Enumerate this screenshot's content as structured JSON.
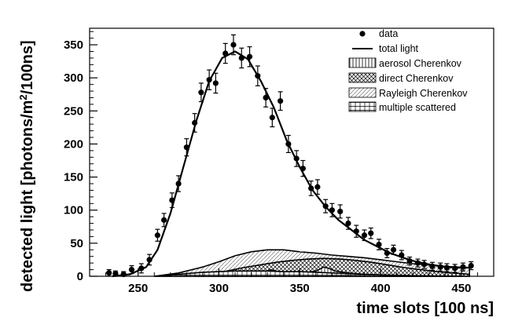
{
  "chart_data": {
    "type": "scatter",
    "xlabel": "time slots [100 ns]",
    "ylabel_main": "detected light [photons/m",
    "ylabel_sup": "2",
    "ylabel_tail": "/100ns]",
    "xlim": [
      220,
      470
    ],
    "ylim": [
      0,
      375
    ],
    "xticks": [
      250,
      300,
      350,
      400,
      450
    ],
    "yticks": [
      0,
      50,
      100,
      150,
      200,
      250,
      300,
      350
    ],
    "legend": {
      "data": "data",
      "total": "total light",
      "aerosol": "aerosol Cherenkov",
      "direct": "direct Cherenkov",
      "rayleigh": "Rayleigh Cherenkov",
      "multiple": "multiple scattered"
    },
    "points": [
      {
        "x": 232,
        "y": 5,
        "e": 5
      },
      {
        "x": 236,
        "y": 4,
        "e": 4
      },
      {
        "x": 241,
        "y": 3,
        "e": 4
      },
      {
        "x": 246,
        "y": 10,
        "e": 6
      },
      {
        "x": 252,
        "y": 12,
        "e": 7
      },
      {
        "x": 257,
        "y": 25,
        "e": 8
      },
      {
        "x": 262,
        "y": 62,
        "e": 9
      },
      {
        "x": 266,
        "y": 85,
        "e": 10
      },
      {
        "x": 271,
        "y": 115,
        "e": 11
      },
      {
        "x": 275,
        "y": 140,
        "e": 12
      },
      {
        "x": 280,
        "y": 195,
        "e": 13
      },
      {
        "x": 285,
        "y": 232,
        "e": 14
      },
      {
        "x": 289,
        "y": 278,
        "e": 14
      },
      {
        "x": 294,
        "y": 297,
        "e": 15
      },
      {
        "x": 298,
        "y": 292,
        "e": 15
      },
      {
        "x": 304,
        "y": 337,
        "e": 15
      },
      {
        "x": 309,
        "y": 350,
        "e": 15
      },
      {
        "x": 314,
        "y": 330,
        "e": 15
      },
      {
        "x": 319,
        "y": 332,
        "e": 15
      },
      {
        "x": 324,
        "y": 303,
        "e": 15
      },
      {
        "x": 329,
        "y": 270,
        "e": 14
      },
      {
        "x": 333,
        "y": 240,
        "e": 14
      },
      {
        "x": 338,
        "y": 265,
        "e": 14
      },
      {
        "x": 343,
        "y": 200,
        "e": 13
      },
      {
        "x": 348,
        "y": 178,
        "e": 12
      },
      {
        "x": 352,
        "y": 163,
        "e": 12
      },
      {
        "x": 357,
        "y": 133,
        "e": 11
      },
      {
        "x": 361,
        "y": 135,
        "e": 11
      },
      {
        "x": 366,
        "y": 106,
        "e": 10
      },
      {
        "x": 370,
        "y": 100,
        "e": 10
      },
      {
        "x": 375,
        "y": 98,
        "e": 10
      },
      {
        "x": 380,
        "y": 80,
        "e": 9
      },
      {
        "x": 385,
        "y": 68,
        "e": 9
      },
      {
        "x": 390,
        "y": 62,
        "e": 8
      },
      {
        "x": 394,
        "y": 65,
        "e": 8
      },
      {
        "x": 399,
        "y": 48,
        "e": 8
      },
      {
        "x": 404,
        "y": 35,
        "e": 7
      },
      {
        "x": 408,
        "y": 40,
        "e": 7
      },
      {
        "x": 413,
        "y": 32,
        "e": 7
      },
      {
        "x": 418,
        "y": 23,
        "e": 6
      },
      {
        "x": 423,
        "y": 20,
        "e": 6
      },
      {
        "x": 427,
        "y": 18,
        "e": 6
      },
      {
        "x": 432,
        "y": 15,
        "e": 6
      },
      {
        "x": 437,
        "y": 14,
        "e": 6
      },
      {
        "x": 441,
        "y": 13,
        "e": 6
      },
      {
        "x": 446,
        "y": 12,
        "e": 6
      },
      {
        "x": 451,
        "y": 14,
        "e": 6
      },
      {
        "x": 456,
        "y": 16,
        "e": 6
      }
    ],
    "total_light": [
      [
        234,
        0
      ],
      [
        245,
        3
      ],
      [
        255,
        14
      ],
      [
        262,
        40
      ],
      [
        270,
        95
      ],
      [
        278,
        165
      ],
      [
        286,
        235
      ],
      [
        294,
        295
      ],
      [
        302,
        330
      ],
      [
        310,
        340
      ],
      [
        318,
        328
      ],
      [
        326,
        295
      ],
      [
        334,
        255
      ],
      [
        342,
        205
      ],
      [
        350,
        165
      ],
      [
        358,
        130
      ],
      [
        366,
        105
      ],
      [
        374,
        85
      ],
      [
        382,
        70
      ],
      [
        390,
        55
      ],
      [
        398,
        45
      ],
      [
        406,
        35
      ],
      [
        414,
        28
      ],
      [
        422,
        22
      ],
      [
        430,
        18
      ],
      [
        438,
        15
      ],
      [
        446,
        13
      ],
      [
        455,
        13
      ]
    ],
    "direct_cherenkov": [
      [
        285,
        0
      ],
      [
        295,
        3
      ],
      [
        305,
        8
      ],
      [
        315,
        13
      ],
      [
        325,
        17
      ],
      [
        335,
        21
      ],
      [
        345,
        24
      ],
      [
        355,
        26
      ],
      [
        365,
        27
      ],
      [
        375,
        26
      ],
      [
        385,
        24
      ],
      [
        395,
        21
      ],
      [
        405,
        17
      ],
      [
        415,
        13
      ],
      [
        425,
        10
      ],
      [
        435,
        7
      ],
      [
        445,
        5
      ],
      [
        455,
        3
      ]
    ],
    "rayleigh_cherenkov": [
      [
        260,
        0
      ],
      [
        275,
        5
      ],
      [
        290,
        14
      ],
      [
        300,
        22
      ],
      [
        310,
        31
      ],
      [
        320,
        37
      ],
      [
        330,
        40
      ],
      [
        340,
        40
      ],
      [
        350,
        37
      ],
      [
        360,
        35
      ],
      [
        370,
        32
      ],
      [
        380,
        30
      ],
      [
        390,
        28
      ],
      [
        400,
        25
      ],
      [
        410,
        22
      ],
      [
        420,
        19
      ],
      [
        430,
        17
      ],
      [
        440,
        15
      ],
      [
        455,
        13
      ]
    ],
    "aerosol_cherenkov": [
      [
        285,
        0
      ],
      [
        295,
        2
      ],
      [
        305,
        4
      ],
      [
        315,
        5
      ],
      [
        320,
        4
      ],
      [
        325,
        3
      ],
      [
        330,
        8
      ],
      [
        332,
        10
      ],
      [
        335,
        8
      ],
      [
        340,
        5
      ],
      [
        350,
        4
      ],
      [
        360,
        8
      ],
      [
        365,
        14
      ],
      [
        368,
        12
      ],
      [
        372,
        8
      ],
      [
        380,
        5
      ],
      [
        390,
        3
      ],
      [
        400,
        2
      ],
      [
        410,
        1
      ],
      [
        425,
        0
      ]
    ],
    "multiple_scattered": [
      [
        260,
        0
      ],
      [
        270,
        2
      ],
      [
        280,
        4
      ],
      [
        290,
        6
      ],
      [
        300,
        7
      ],
      [
        310,
        8
      ],
      [
        320,
        8
      ],
      [
        330,
        8
      ],
      [
        340,
        7
      ],
      [
        350,
        7
      ],
      [
        360,
        6
      ],
      [
        370,
        5
      ],
      [
        380,
        4
      ],
      [
        390,
        3
      ],
      [
        400,
        2
      ],
      [
        420,
        1
      ],
      [
        450,
        0
      ]
    ]
  }
}
